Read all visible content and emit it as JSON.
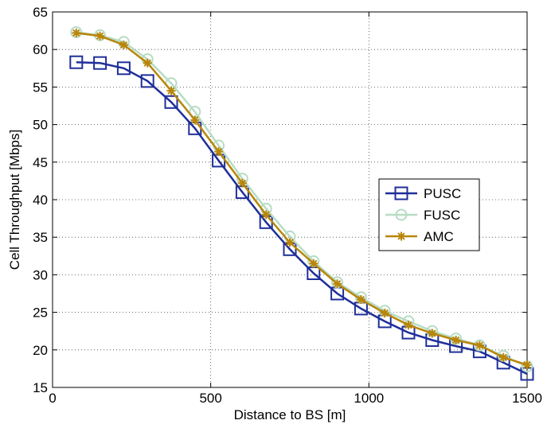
{
  "chart_data": {
    "type": "line",
    "title": "",
    "xlabel": "Distance to BS [m]",
    "ylabel": "Cell Throughput [Mbps]",
    "xlim": [
      0,
      1500
    ],
    "ylim": [
      15,
      65
    ],
    "xticks": [
      0,
      500,
      1000,
      1500
    ],
    "yticks": [
      15,
      20,
      25,
      30,
      35,
      40,
      45,
      50,
      55,
      60,
      65
    ],
    "grid": true,
    "legend_position": "center-right",
    "x": [
      75,
      150,
      225,
      300,
      375,
      450,
      525,
      600,
      675,
      750,
      825,
      900,
      975,
      1050,
      1125,
      1200,
      1275,
      1350,
      1425,
      1500
    ],
    "series": [
      {
        "name": "PUSC",
        "color": "#1f2f99",
        "marker": "square",
        "values": [
          58.3,
          58.2,
          57.5,
          55.8,
          53.0,
          49.5,
          45.2,
          41.0,
          37.0,
          33.4,
          30.2,
          27.5,
          25.5,
          23.8,
          22.3,
          21.3,
          20.5,
          19.8,
          18.3,
          16.8
        ]
      },
      {
        "name": "FUSC",
        "color": "#b7dcc4",
        "marker": "circle",
        "values": [
          62.3,
          61.9,
          61.0,
          58.7,
          55.5,
          51.7,
          47.2,
          42.8,
          38.8,
          35.1,
          31.8,
          29.0,
          27.0,
          25.2,
          23.8,
          22.5,
          21.5,
          20.6,
          19.2,
          17.8
        ]
      },
      {
        "name": "AMC",
        "color": "#b8860b",
        "marker": "asterisk",
        "values": [
          62.2,
          61.8,
          60.6,
          58.2,
          54.5,
          50.6,
          46.4,
          42.2,
          38.0,
          34.3,
          31.5,
          28.8,
          26.7,
          24.9,
          23.3,
          22.2,
          21.3,
          20.6,
          19.0,
          18.0
        ]
      }
    ]
  }
}
